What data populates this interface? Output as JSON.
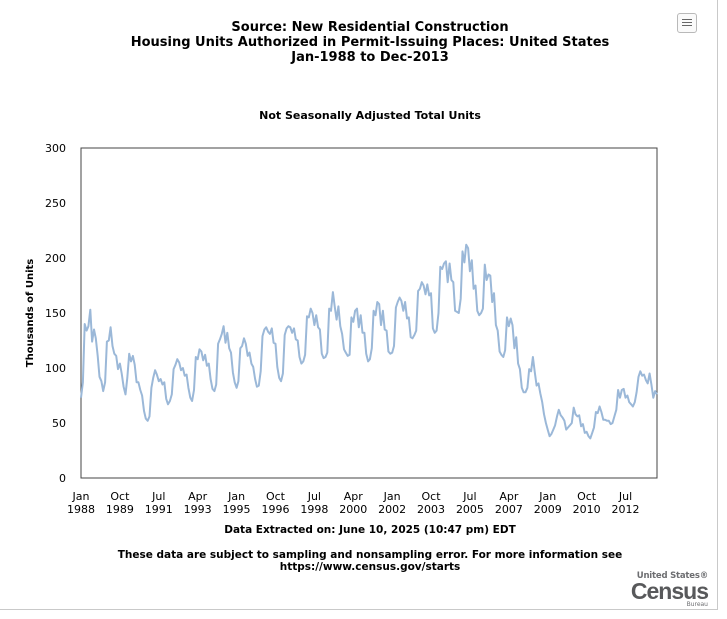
{
  "header": {
    "title_lines": [
      "Source: New Residential Construction",
      "Housing Units Authorized in Permit-Issuing Places: United States",
      "Jan-1988 to Dec-2013"
    ]
  },
  "menu_icon": "hamburger-menu-icon",
  "footer": {
    "extracted": "Data Extracted on: June 10, 2025 (10:47 pm) EDT",
    "note_line1": "These data are subject to sampling and nonsampling error. For more information see",
    "note_line2": "https://www.census.gov/starts"
  },
  "logo": {
    "line1": "United States®",
    "line2": "Census",
    "line3": "Bureau"
  },
  "colors": {
    "series": "#9bb8d8",
    "plot_border": "#444444"
  },
  "chart_data": {
    "type": "line",
    "title": "Not Seasonally Adjusted Total Units",
    "ylabel": "Thousands of Units",
    "xlabel": "",
    "ylim": [
      0,
      300
    ],
    "yticks": [
      0,
      50,
      100,
      150,
      200,
      250,
      300
    ],
    "xlim": [
      "Jan-1988",
      "Dec-2013"
    ],
    "xticks": [
      {
        "month": "Jan",
        "year": "1988"
      },
      {
        "month": "Oct",
        "year": "1989"
      },
      {
        "month": "Jul",
        "year": "1991"
      },
      {
        "month": "Apr",
        "year": "1993"
      },
      {
        "month": "Jan",
        "year": "1995"
      },
      {
        "month": "Oct",
        "year": "1996"
      },
      {
        "month": "Jul",
        "year": "1998"
      },
      {
        "month": "Apr",
        "year": "2000"
      },
      {
        "month": "Jan",
        "year": "2002"
      },
      {
        "month": "Oct",
        "year": "2003"
      },
      {
        "month": "Jul",
        "year": "2005"
      },
      {
        "month": "Apr",
        "year": "2007"
      },
      {
        "month": "Jan",
        "year": "2009"
      },
      {
        "month": "Oct",
        "year": "2010"
      },
      {
        "month": "Jul",
        "year": "2012"
      }
    ],
    "grid": false,
    "legend": "none",
    "series": [
      {
        "start": "Jan-1988",
        "frequency": "monthly",
        "values": [
          73,
          87,
          140,
          134,
          138,
          153,
          124,
          135,
          127,
          111,
          92,
          88,
          79,
          87,
          124,
          125,
          137,
          120,
          113,
          111,
          99,
          104,
          95,
          83,
          76,
          91,
          113,
          106,
          111,
          103,
          87,
          87,
          80,
          75,
          61,
          54,
          52,
          56,
          82,
          91,
          98,
          94,
          88,
          90,
          85,
          87,
          72,
          67,
          70,
          76,
          99,
          103,
          108,
          105,
          98,
          100,
          93,
          94,
          82,
          73,
          70,
          80,
          110,
          108,
          117,
          115,
          107,
          112,
          102,
          104,
          90,
          81,
          79,
          85,
          122,
          126,
          131,
          138,
          123,
          132,
          118,
          114,
          96,
          87,
          82,
          88,
          118,
          120,
          127,
          122,
          111,
          114,
          104,
          101,
          90,
          83,
          84,
          97,
          129,
          135,
          137,
          133,
          131,
          136,
          123,
          122,
          101,
          91,
          88,
          95,
          130,
          136,
          138,
          137,
          132,
          136,
          126,
          125,
          110,
          104,
          106,
          112,
          147,
          146,
          154,
          150,
          139,
          148,
          137,
          135,
          113,
          109,
          110,
          114,
          154,
          152,
          169,
          156,
          144,
          156,
          138,
          131,
          117,
          114,
          111,
          112,
          146,
          142,
          152,
          154,
          137,
          148,
          132,
          132,
          113,
          106,
          108,
          118,
          152,
          148,
          160,
          158,
          139,
          152,
          135,
          134,
          115,
          113,
          114,
          120,
          155,
          160,
          164,
          161,
          152,
          160,
          145,
          146,
          128,
          127,
          130,
          134,
          170,
          172,
          178,
          175,
          167,
          176,
          166,
          168,
          136,
          132,
          134,
          150,
          192,
          190,
          195,
          197,
          178,
          195,
          180,
          178,
          152,
          151,
          150,
          163,
          206,
          196,
          212,
          209,
          188,
          198,
          172,
          175,
          152,
          148,
          150,
          154,
          194,
          180,
          185,
          184,
          160,
          168,
          139,
          134,
          115,
          112,
          110,
          116,
          146,
          138,
          145,
          139,
          118,
          128,
          104,
          99,
          82,
          78,
          78,
          82,
          99,
          97,
          110,
          96,
          84,
          86,
          77,
          69,
          58,
          50,
          44,
          38,
          40,
          44,
          48,
          56,
          62,
          57,
          55,
          52,
          44,
          46,
          48,
          50,
          64,
          58,
          56,
          57,
          47,
          49,
          41,
          42,
          38,
          36,
          41,
          46,
          60,
          59,
          65,
          60,
          53,
          53,
          52,
          52,
          49,
          50,
          56,
          62,
          80,
          73,
          80,
          81,
          73,
          75,
          69,
          67,
          65,
          69,
          78,
          92,
          97,
          93,
          94,
          89,
          86,
          95,
          85,
          73,
          79,
          76
        ]
      }
    ]
  }
}
